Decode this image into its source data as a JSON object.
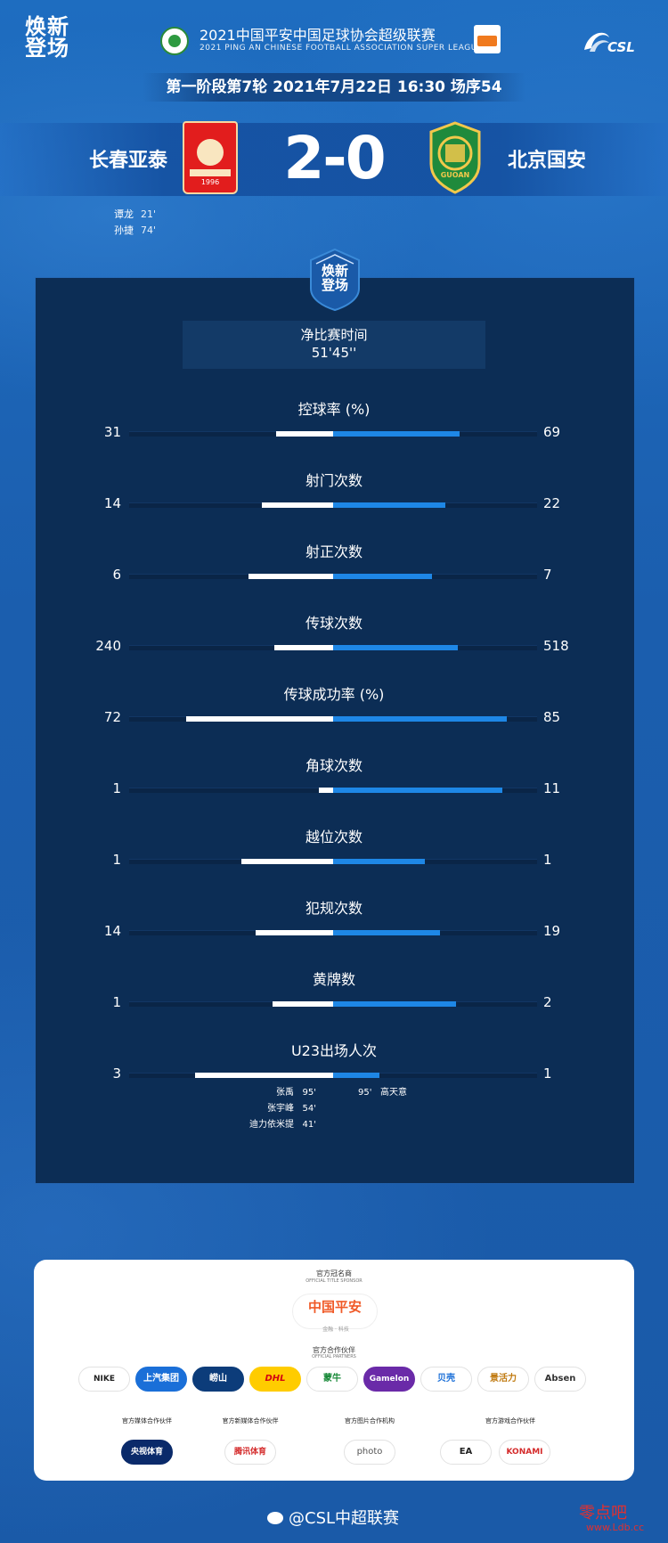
{
  "header": {
    "logo_left": "焕新\n登场",
    "league_title": "2021中国平安中国足球协会超级联赛",
    "league_subtitle": "2021 PING AN CHINESE FOOTBALL ASSOCIATION SUPER LEAGUE",
    "csl_logo_text": "CSL"
  },
  "match": {
    "info": "第一阶段第7轮  2021年7月22日 16:30 场序54",
    "home_team": "长春亚泰",
    "away_team": "北京国安",
    "score": "2-0",
    "home_crest_year": "1996",
    "away_crest_text": "GUOAN",
    "scorers": [
      {
        "name": "谭龙",
        "minute": "21'"
      },
      {
        "name": "孙捷",
        "minute": "74'"
      }
    ]
  },
  "panel": {
    "badge_text": "焕新\n登场",
    "net_time_label": "净比赛时间",
    "net_time_value": "51'45''"
  },
  "stats": [
    {
      "label": "控球率 (%)",
      "home": "31",
      "away": "69",
      "home_frac": 0.31,
      "away_frac": 0.69
    },
    {
      "label": "射门次数",
      "home": "14",
      "away": "22",
      "home_frac": 0.39,
      "away_frac": 0.61
    },
    {
      "label": "射正次数",
      "home": "6",
      "away": "7",
      "home_frac": 0.46,
      "away_frac": 0.54
    },
    {
      "label": "传球次数",
      "home": "240",
      "away": "518",
      "home_frac": 0.32,
      "away_frac": 0.68
    },
    {
      "label": "传球成功率 (%)",
      "home": "72",
      "away": "85",
      "home_frac": 0.72,
      "away_frac": 0.85
    },
    {
      "label": "角球次数",
      "home": "1",
      "away": "11",
      "home_frac": 0.08,
      "away_frac": 0.92
    },
    {
      "label": "越位次数",
      "home": "1",
      "away": "1",
      "home_frac": 0.5,
      "away_frac": 0.5
    },
    {
      "label": "犯规次数",
      "home": "14",
      "away": "19",
      "home_frac": 0.42,
      "away_frac": 0.58
    },
    {
      "label": "黄牌数",
      "home": "1",
      "away": "2",
      "home_frac": 0.33,
      "away_frac": 0.67
    },
    {
      "label": "U23出场人次",
      "home": "3",
      "away": "1",
      "home_frac": 0.75,
      "away_frac": 0.25
    }
  ],
  "u23_players": {
    "home": [
      {
        "name": "张禹",
        "minute": "95'"
      },
      {
        "name": "张宇峰",
        "minute": "54'"
      },
      {
        "name": "迪力依米提",
        "minute": "41'"
      }
    ],
    "away": [
      {
        "name": "高天意",
        "minute": "95'"
      }
    ]
  },
  "sponsors": {
    "title_sponsor_label": "官方冠名商",
    "title_sponsor_sub": "OFFICIAL TITLE SPONSOR",
    "title_sponsor_name": "中国平安",
    "title_sponsor_tag": "金融 · 科技",
    "partners_label": "官方合作伙伴",
    "partners_sub": "OFFICIAL PARTNERS",
    "partners": [
      "NIKE",
      "上汽集团",
      "崂山",
      "DHL",
      "蒙牛",
      "Gamelon",
      "贝壳",
      "景活力",
      "Absen"
    ],
    "categories": [
      {
        "label": "官方媒体合作伙伴",
        "logos": [
          "央视体育"
        ]
      },
      {
        "label": "官方新媒体合作伙伴",
        "logos": [
          "腾讯体育"
        ]
      },
      {
        "label": "官方图片合作机构",
        "logos": [
          "photo"
        ]
      },
      {
        "label": "官方游戏合作伙伴",
        "logos": [
          "EA",
          "KONAMI"
        ]
      }
    ]
  },
  "footer": {
    "weibo": "@CSL中超联赛",
    "watermark": "零点吧",
    "watermark_url": "www.Ldb.cc"
  },
  "colors": {
    "background": "#1c63b6",
    "panel": "#0c2d55",
    "home_bar": "#ffffff",
    "away_bar": "#1e87e6"
  }
}
